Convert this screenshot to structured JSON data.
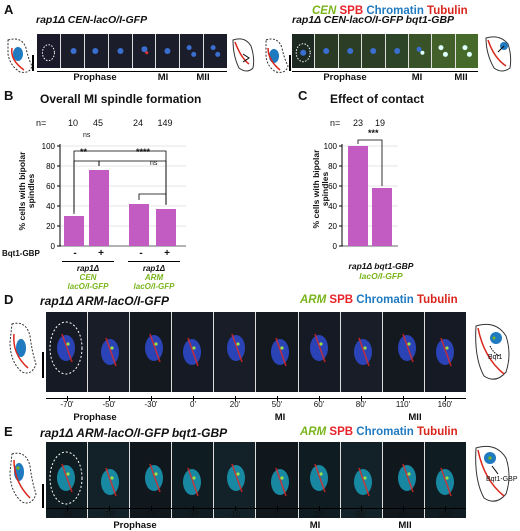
{
  "panels": {
    "A": {
      "label": "A",
      "legend": {
        "cen": "CEN",
        "spb": "SPB",
        "chromatin": "Chromatin",
        "tubulin": "Tubulin"
      },
      "left_strain": "rap1Δ CEN-lacO/I-GFP",
      "right_strain": "rap1Δ CEN-lacO/I-GFP bqt1-GBP",
      "stages": {
        "prophase": "Prophase",
        "mi": "MI",
        "mii": "MII"
      }
    },
    "B": {
      "label": "B",
      "title": "Overall MI spindle formation",
      "n_label": "n=",
      "n_values": [
        "10",
        "45",
        "24",
        "149"
      ],
      "ylabel": "% cells with bipolar spindles",
      "bqt_label": "Bqt1-GBP",
      "signs": [
        "-",
        "+",
        "-",
        "+"
      ],
      "group1": [
        "rap1Δ",
        "CEN",
        "lacO/I-GFP"
      ],
      "group2": [
        "rap1Δ",
        "ARM",
        "lacO/I-GFP"
      ],
      "sig": {
        "ns_top": "ns",
        "double": "**",
        "quad": "****",
        "ns_right": "ns"
      }
    },
    "C": {
      "label": "C",
      "title": "Effect of contact",
      "n_label": "n=",
      "n_values": [
        "23",
        "19"
      ],
      "ylabel": "% cells with bipolar spindles",
      "sig": "***",
      "sub1": "rap1Δ bqt1-GBP",
      "sub2": "lacO/I-GFP"
    },
    "D": {
      "label": "D",
      "strain": "rap1Δ ARM-lacO/I-GFP",
      "legend": {
        "arm": "ARM",
        "spb": "SPB",
        "chromatin": "Chromatin",
        "tubulin": "Tubulin"
      },
      "times": [
        "-70'",
        "-50'",
        "-30'",
        "0'",
        "20'",
        "50'",
        "60'",
        "80'",
        "110'",
        "160'"
      ],
      "stages": {
        "prophase": "Prophase",
        "mi": "MI",
        "mii": "MII"
      },
      "cartoon_label": "Bqt1"
    },
    "E": {
      "label": "E",
      "strain": "rap1Δ ARM-lacO/I-GFP bqt1-GBP",
      "legend": {
        "arm": "ARM",
        "spb": "SPB",
        "chromatin": "Chromatin",
        "tubulin": "Tubulin"
      },
      "times": [
        "-80'",
        "-70'",
        "-50'",
        "-30'",
        "-10'",
        "0'",
        "20'",
        "60'",
        "80'",
        "100'"
      ],
      "stages": {
        "prophase": "Prophase",
        "mi": "MI",
        "mii": "MII"
      },
      "cartoon_label": "Bqt1-GBP"
    }
  },
  "chart_data": [
    {
      "type": "bar",
      "title": "Overall MI spindle formation",
      "categories": [
        "rap1Δ CEN-lacO/I-GFP −",
        "rap1Δ CEN-lacO/I-GFP +",
        "rap1Δ ARM-lacO/I-GFP −",
        "rap1Δ ARM-lacO/I-GFP +"
      ],
      "values": [
        30,
        76,
        42,
        37
      ],
      "n": [
        10,
        45,
        24,
        149
      ],
      "ylabel": "% cells with bipolar spindles",
      "ylim": [
        0,
        100
      ],
      "yticks": [
        0,
        20,
        40,
        60,
        80,
        100
      ],
      "color": "#c35cc2"
    },
    {
      "type": "bar",
      "title": "Effect of contact",
      "categories": [
        "CEN",
        "ARM"
      ],
      "values": [
        100,
        58
      ],
      "n": [
        23,
        19
      ],
      "ylabel": "% cells with bipolar spindles",
      "ylim": [
        0,
        100
      ],
      "yticks": [
        0,
        20,
        40,
        60,
        80,
        100
      ],
      "color": "#c35cc2"
    }
  ]
}
